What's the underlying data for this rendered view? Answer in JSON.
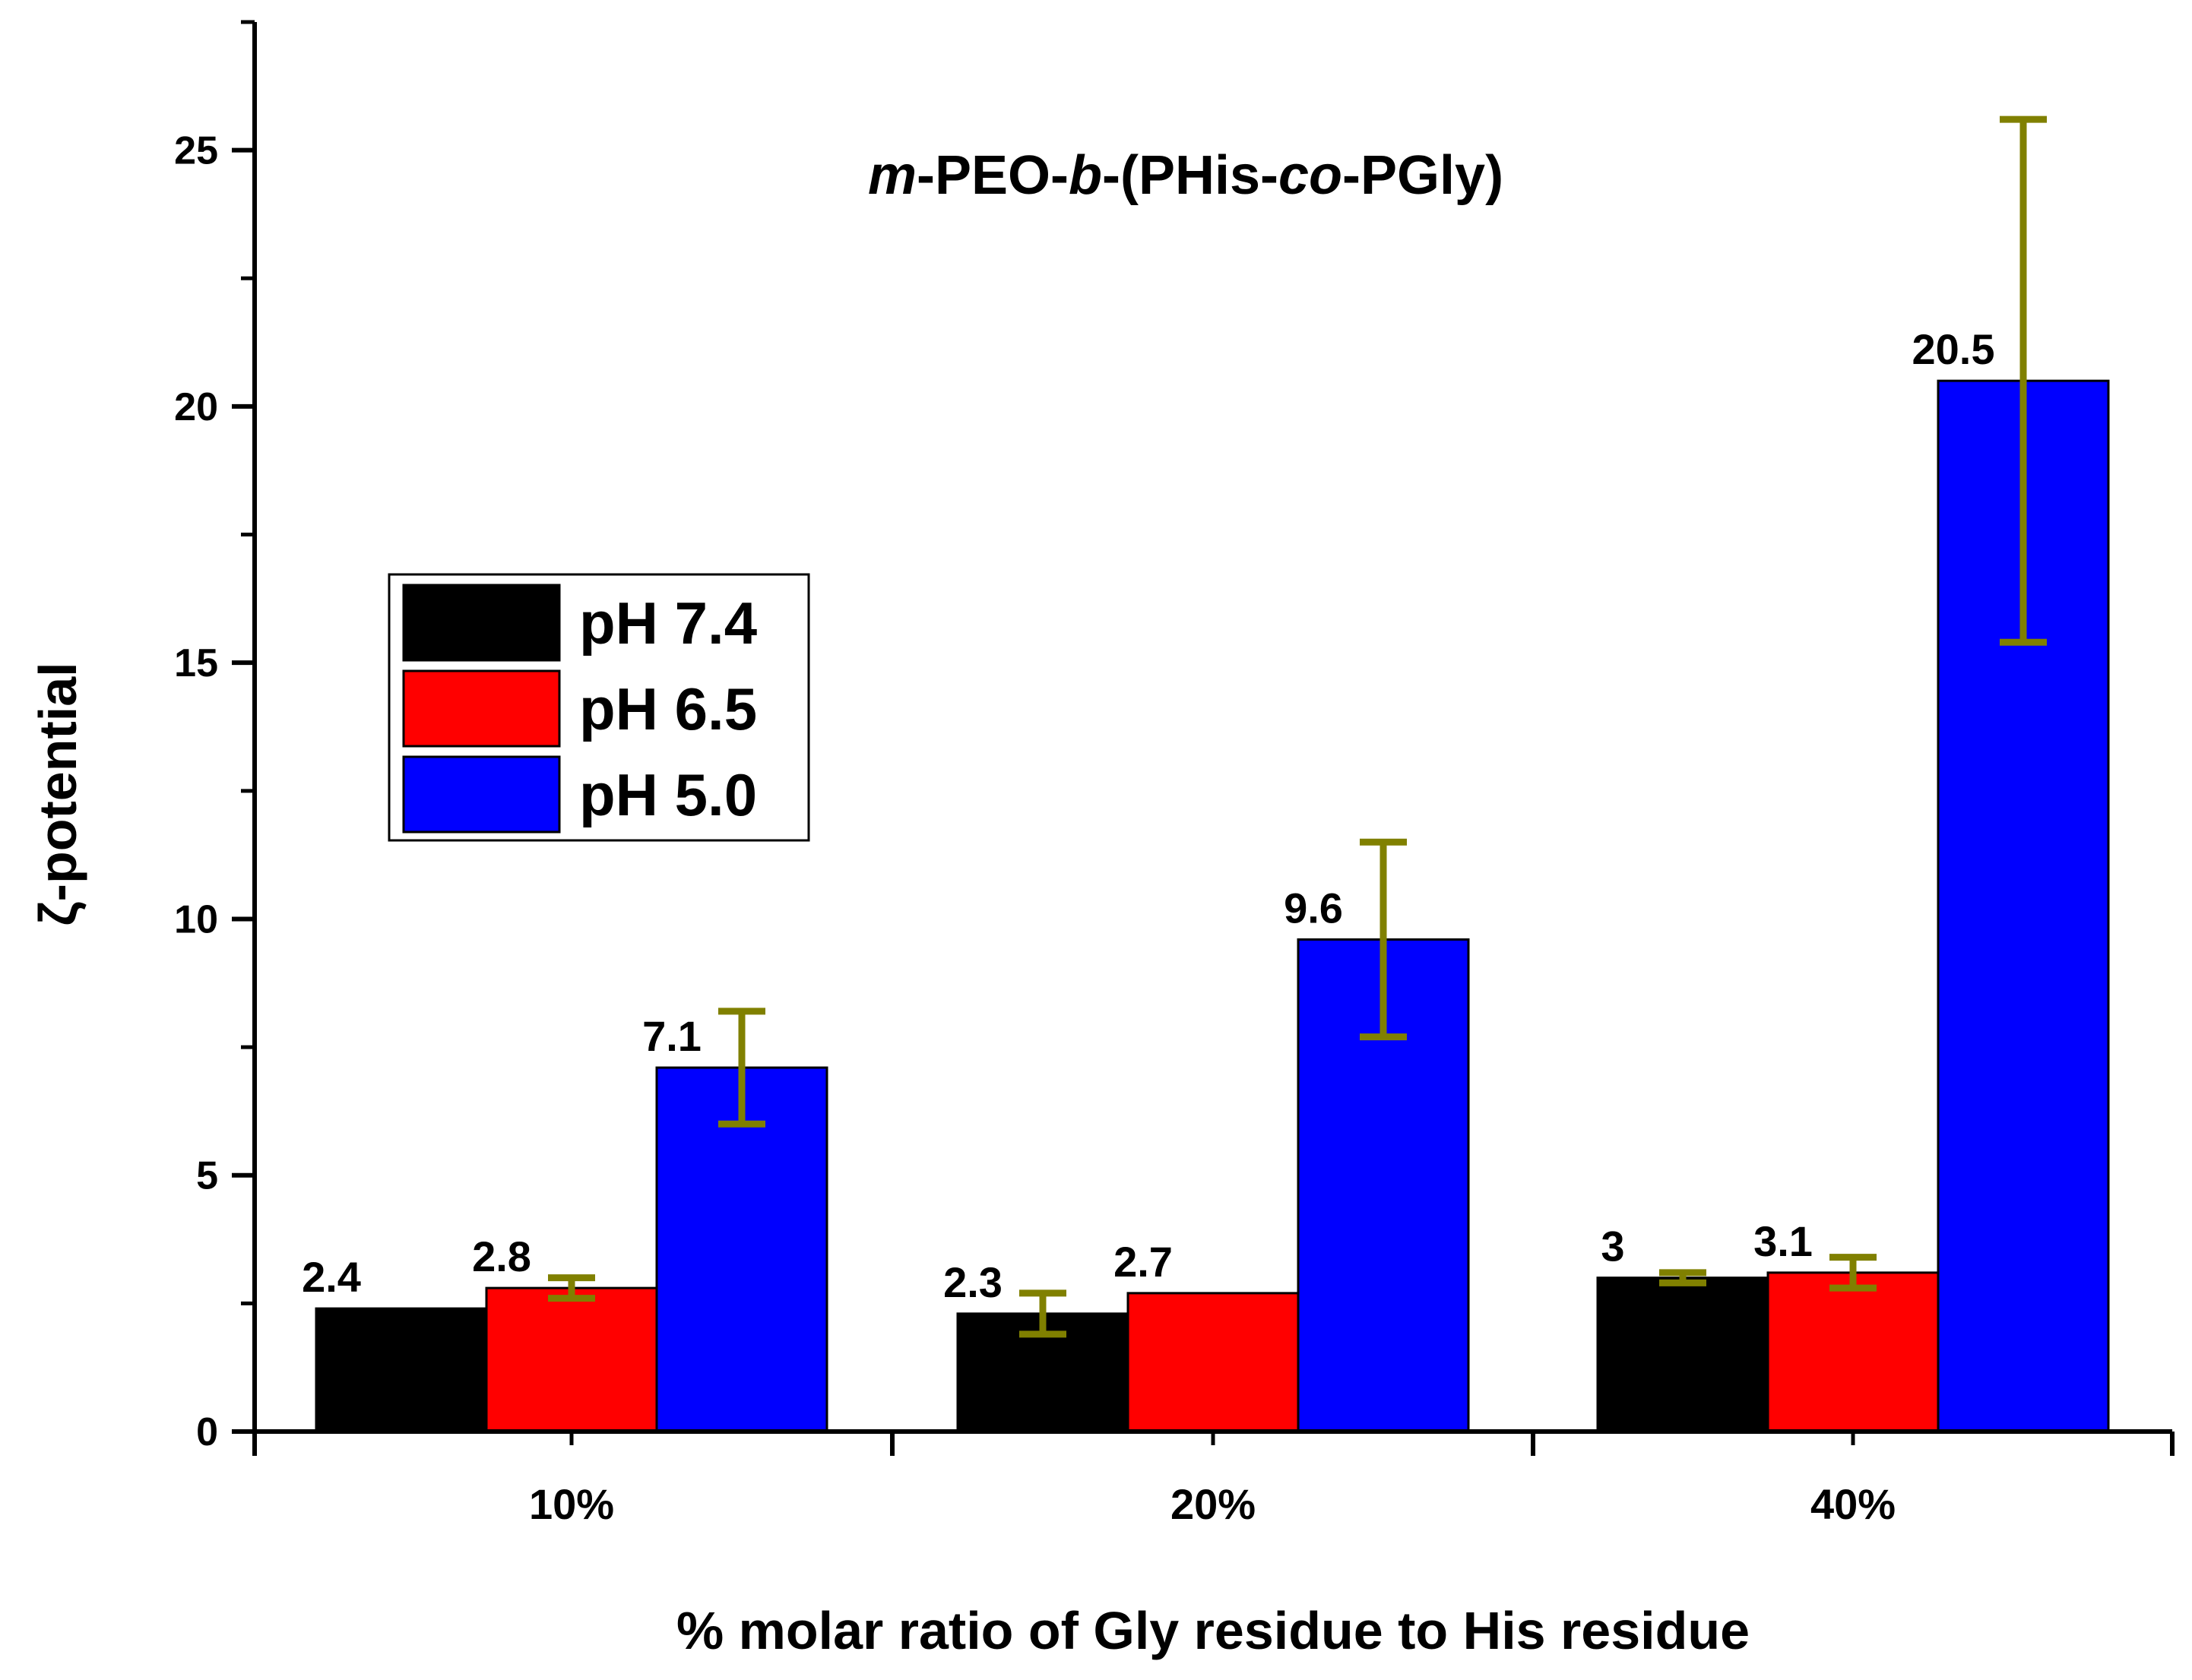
{
  "chart_data": {
    "type": "bar",
    "title_parts": [
      {
        "text": "m",
        "italic": true
      },
      {
        "text": "-PEO-",
        "italic": false
      },
      {
        "text": "b",
        "italic": true
      },
      {
        "text": "-(PHis-",
        "italic": false
      },
      {
        "text": "co",
        "italic": true
      },
      {
        "text": "-PGly)",
        "italic": false
      }
    ],
    "xlabel": "% molar ratio of Gly residue to His residue",
    "ylabel": "ζ-potential",
    "ylim": [
      0,
      27.5
    ],
    "yticks": [
      0,
      5,
      10,
      15,
      20,
      25
    ],
    "categories": [
      "10%",
      "20%",
      "40%"
    ],
    "series": [
      {
        "name": "pH 7.4",
        "color": "#000000",
        "values": [
          2.4,
          2.3,
          3.0
        ],
        "labels": [
          "2.4",
          "2.3",
          "3"
        ],
        "errors": [
          null,
          0.4,
          0.1
        ]
      },
      {
        "name": "pH 6.5",
        "color": "#ff0000",
        "values": [
          2.8,
          2.7,
          3.1
        ],
        "labels": [
          "2.8",
          "2.7",
          "3.1"
        ],
        "errors": [
          0.2,
          null,
          0.3
        ]
      },
      {
        "name": "pH 5.0",
        "color": "#0000ff",
        "values": [
          7.1,
          9.6,
          20.5
        ],
        "labels": [
          "7.1",
          "9.6",
          "20.5"
        ],
        "errors": [
          1.1,
          1.9,
          5.1
        ]
      }
    ],
    "error_bar_color": "#808000",
    "legend": {
      "position": "center-left"
    }
  }
}
